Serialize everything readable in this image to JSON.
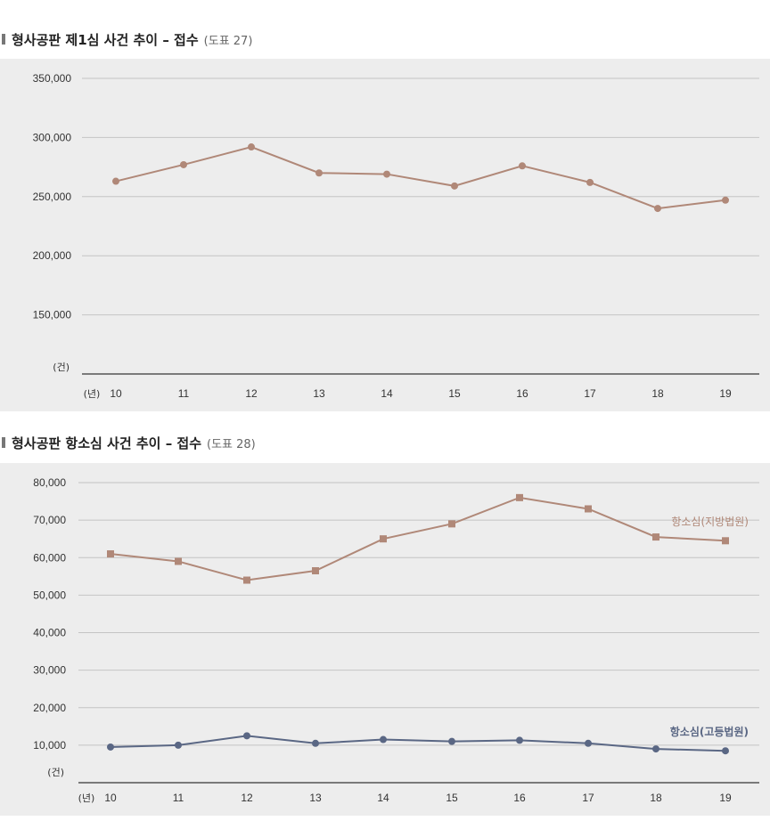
{
  "chart_data": [
    {
      "type": "line",
      "title": "형사공판 제1심 사건 추이 – 접수",
      "ref": "(도표 27)",
      "x_unit": "(년)",
      "y_unit": "(건)",
      "categories": [
        "10",
        "11",
        "12",
        "13",
        "14",
        "15",
        "16",
        "17",
        "18",
        "19"
      ],
      "yticks": [
        "150,000",
        "200,000",
        "250,000",
        "300,000",
        "350,000"
      ],
      "ytick_values": [
        150000,
        200000,
        250000,
        300000,
        350000
      ],
      "ylim": [
        100000,
        350000
      ],
      "series": [
        {
          "name": "접수",
          "color": "#b08878",
          "marker": "circle",
          "values": [
            263000,
            277000,
            292000,
            270000,
            269000,
            259000,
            276000,
            262000,
            240000,
            247000
          ]
        }
      ]
    },
    {
      "type": "line",
      "title": "형사공판 항소심 사건 추이 – 접수",
      "ref": "(도표 28)",
      "x_unit": "(년)",
      "y_unit": "(건)",
      "categories": [
        "10",
        "11",
        "12",
        "13",
        "14",
        "15",
        "16",
        "17",
        "18",
        "19"
      ],
      "yticks": [
        "10,000",
        "20,000",
        "30,000",
        "40,000",
        "50,000",
        "60,000",
        "70,000",
        "80,000"
      ],
      "ytick_values": [
        10000,
        20000,
        30000,
        40000,
        50000,
        60000,
        70000,
        80000
      ],
      "ylim": [
        0,
        80000
      ],
      "series": [
        {
          "name": "항소심(지방법원)",
          "color": "#b08878",
          "marker": "square",
          "values": [
            61000,
            59000,
            54000,
            56500,
            65000,
            69000,
            76000,
            73000,
            65500,
            64500
          ]
        },
        {
          "name": "항소심(고등법원)",
          "color": "#5a6784",
          "marker": "circle",
          "values": [
            9500,
            10000,
            12500,
            10500,
            11500,
            11000,
            11300,
            10500,
            9000,
            8500
          ]
        }
      ]
    }
  ]
}
